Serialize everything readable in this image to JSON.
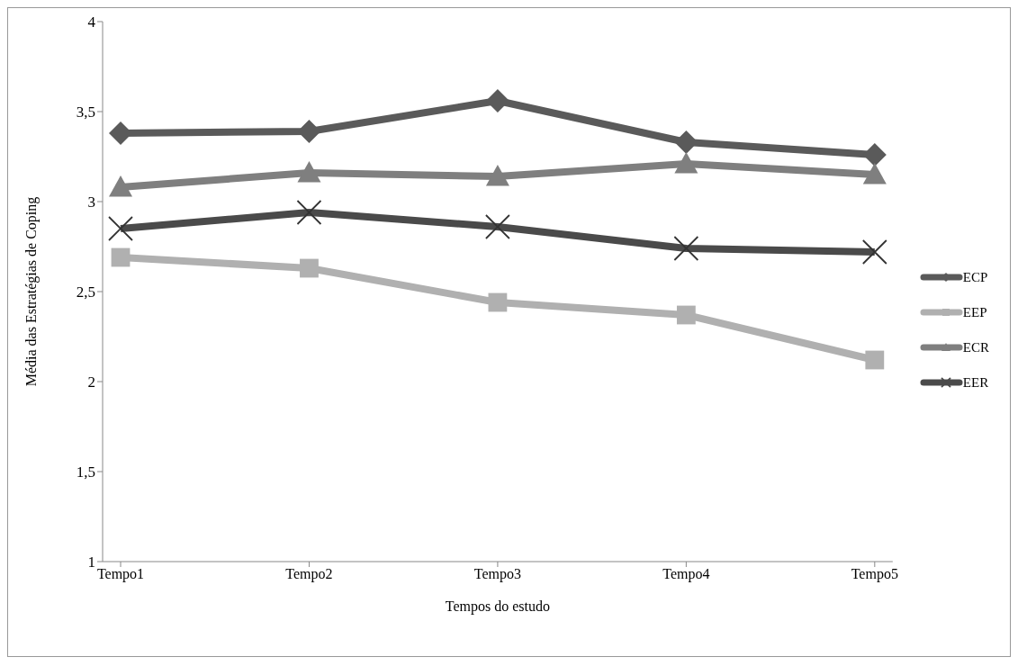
{
  "chart_data": {
    "type": "line",
    "xlabel": "Tempos do estudo",
    "ylabel": "Média das Estratégias de Coping",
    "categories": [
      "Tempo1",
      "Tempo2",
      "Tempo3",
      "Tempo4",
      "Tempo5"
    ],
    "ylim": [
      1,
      4
    ],
    "yticks": [
      1,
      {
        "value": 1.5,
        "label": "1,5"
      },
      2,
      {
        "value": 2.5,
        "label": "2,5"
      },
      3,
      {
        "value": 3.5,
        "label": "3,5"
      },
      4
    ],
    "grid": false,
    "legend": "right",
    "line_style": "solid",
    "series": [
      {
        "name": "ECP",
        "color": "#5a5a5a",
        "marker": "diamond",
        "values": [
          3.38,
          3.39,
          3.56,
          3.33,
          3.26
        ]
      },
      {
        "name": "EEP",
        "color": "#b0b0b0",
        "marker": "square",
        "values": [
          2.69,
          2.63,
          2.44,
          2.37,
          2.12
        ]
      },
      {
        "name": "ECR",
        "color": "#7f7f7f",
        "marker": "triangle",
        "values": [
          3.08,
          3.16,
          3.14,
          3.21,
          3.15
        ]
      },
      {
        "name": "EER",
        "color": "#4a4a4a",
        "marker": "cross",
        "values": [
          2.85,
          2.94,
          2.86,
          2.74,
          2.72
        ]
      }
    ]
  }
}
